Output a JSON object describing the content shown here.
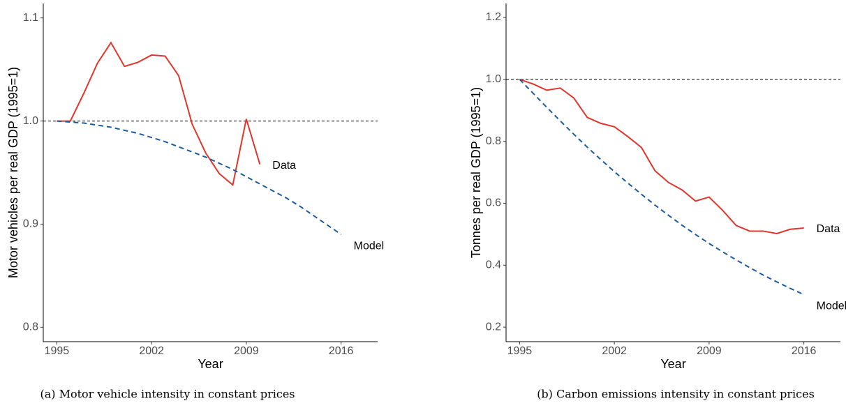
{
  "chart_data": [
    {
      "type": "line",
      "caption": "(a) Motor vehicle intensity in constant prices",
      "x_label": "Year",
      "y_label": "Motor vehicles per real GDP (1995=1)",
      "x": [
        1995,
        1996,
        1997,
        1998,
        1999,
        2000,
        2001,
        2002,
        2003,
        2004,
        2005,
        2006,
        2007,
        2008,
        2009,
        2010,
        2011,
        2012,
        2013,
        2014,
        2015,
        2016
      ],
      "series": [
        {
          "name": "Data",
          "color": "#e3342b",
          "dashed": false,
          "values": [
            1.0,
            1.0,
            1.027,
            1.056,
            1.076,
            1.053,
            1.057,
            1.064,
            1.063,
            1.044,
            0.997,
            0.969,
            0.949,
            0.938,
            1.002,
            0.958,
            null,
            null,
            null,
            null,
            null,
            null
          ]
        },
        {
          "name": "Model",
          "color": "#1b5c9e",
          "dashed": true,
          "values": [
            1.0,
            0.999,
            0.998,
            0.996,
            0.994,
            0.991,
            0.988,
            0.984,
            0.98,
            0.975,
            0.97,
            0.965,
            0.959,
            0.953,
            0.946,
            0.939,
            0.932,
            0.925,
            0.917,
            0.908,
            0.899,
            0.89
          ]
        }
      ],
      "hline": 1.0,
      "xlim": [
        1994,
        2018.7
      ],
      "xticks": [
        1995,
        2002,
        2009,
        2016
      ],
      "ylim": [
        0.786,
        1.114
      ],
      "yticks": [
        0.8,
        0.9,
        {
          "value": 1.0,
          "label": "1.0"
        },
        1.1
      ]
    },
    {
      "type": "line",
      "caption": "(b) Carbon emissions intensity in constant prices",
      "x_label": "Year",
      "y_label": "Tonnes per real GDP (1995=1)",
      "x": [
        1995,
        1996,
        1997,
        1998,
        1999,
        2000,
        2001,
        2002,
        2003,
        2004,
        2005,
        2006,
        2007,
        2008,
        2009,
        2010,
        2011,
        2012,
        2013,
        2014,
        2015,
        2016
      ],
      "series": [
        {
          "name": "Data",
          "color": "#e3342b",
          "dashed": false,
          "values": [
            1.0,
            0.985,
            0.965,
            0.972,
            0.94,
            0.877,
            0.858,
            0.847,
            0.815,
            0.78,
            0.705,
            0.667,
            0.643,
            0.607,
            0.62,
            0.577,
            0.528,
            0.51,
            0.51,
            0.502,
            0.516,
            0.52
          ]
        },
        {
          "name": "Model",
          "color": "#1b5c9e",
          "dashed": true,
          "values": [
            1.0,
            0.955,
            0.91,
            0.866,
            0.823,
            0.781,
            0.741,
            0.702,
            0.665,
            0.629,
            0.594,
            0.561,
            0.529,
            0.499,
            0.47,
            0.443,
            0.417,
            0.392,
            0.368,
            0.346,
            0.325,
            0.305
          ]
        }
      ],
      "hline": 1.0,
      "xlim": [
        1994,
        2018.7
      ],
      "xticks": [
        1995,
        2002,
        2009,
        2016
      ],
      "ylim": [
        0.153,
        1.245
      ],
      "yticks": [
        0.2,
        0.4,
        0.6,
        0.8,
        {
          "value": 1.0,
          "label": "1.0"
        },
        1.2
      ]
    }
  ]
}
